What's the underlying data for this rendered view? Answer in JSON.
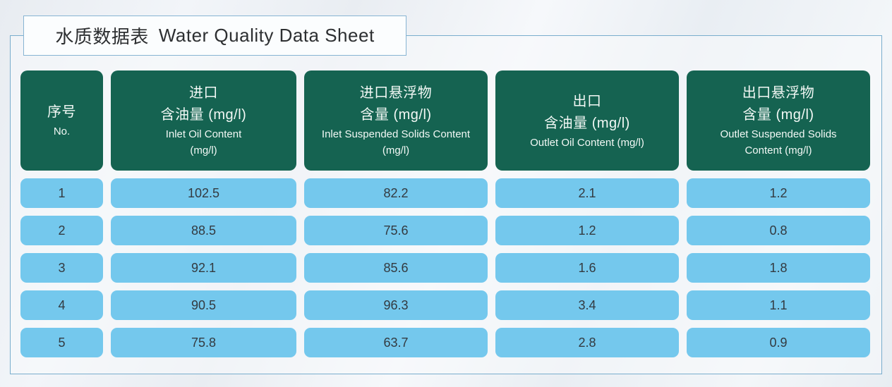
{
  "title": {
    "zh": "水质数据表",
    "en": "Water Quality Data Sheet"
  },
  "colors": {
    "header_bg": "#156351",
    "cell_bg": "#74c8ed",
    "frame_border": "#79adcd",
    "title_border": "#87b4d3"
  },
  "table": {
    "headers": [
      {
        "id": "no",
        "zh_lines": [
          "序号"
        ],
        "en_lines": [
          "No."
        ]
      },
      {
        "id": "inlet-oil",
        "zh_lines": [
          "进口",
          "含油量 (mg/l)"
        ],
        "en_lines": [
          "Inlet Oil Content",
          "(mg/l)"
        ]
      },
      {
        "id": "inlet-ss",
        "zh_lines": [
          "进口悬浮物",
          "含量 (mg/l)"
        ],
        "en_lines": [
          "Inlet Suspended Solids Content",
          "(mg/l)"
        ]
      },
      {
        "id": "outlet-oil",
        "zh_lines": [
          "出口",
          "含油量 (mg/l)"
        ],
        "en_lines": [
          "Outlet Oil Content (mg/l)"
        ]
      },
      {
        "id": "outlet-ss",
        "zh_lines": [
          "出口悬浮物",
          "含量 (mg/l)"
        ],
        "en_lines": [
          "Outlet Suspended Solids",
          "Content (mg/l)"
        ]
      }
    ],
    "rows": [
      [
        "1",
        "102.5",
        "82.2",
        "2.1",
        "1.2"
      ],
      [
        "2",
        "88.5",
        "75.6",
        "1.2",
        "0.8"
      ],
      [
        "3",
        "92.1",
        "85.6",
        "1.6",
        "1.8"
      ],
      [
        "4",
        "90.5",
        "96.3",
        "3.4",
        "1.1"
      ],
      [
        "5",
        "75.8",
        "63.7",
        "2.8",
        "0.9"
      ]
    ]
  },
  "chart_data": {
    "type": "table",
    "title": "水质数据表 Water Quality Data Sheet",
    "columns": [
      "序号 No.",
      "进口含油量 (mg/l) Inlet Oil Content (mg/l)",
      "进口悬浮物含量 (mg/l) Inlet Suspended Solids Content (mg/l)",
      "出口含油量 (mg/l) Outlet Oil Content (mg/l)",
      "出口悬浮物含量 (mg/l) Outlet Suspended Solids Content (mg/l)"
    ],
    "rows": [
      [
        1,
        102.5,
        82.2,
        2.1,
        1.2
      ],
      [
        2,
        88.5,
        75.6,
        1.2,
        0.8
      ],
      [
        3,
        92.1,
        85.6,
        1.6,
        1.8
      ],
      [
        4,
        90.5,
        96.3,
        3.4,
        1.1
      ],
      [
        5,
        75.8,
        63.7,
        2.8,
        0.9
      ]
    ]
  }
}
